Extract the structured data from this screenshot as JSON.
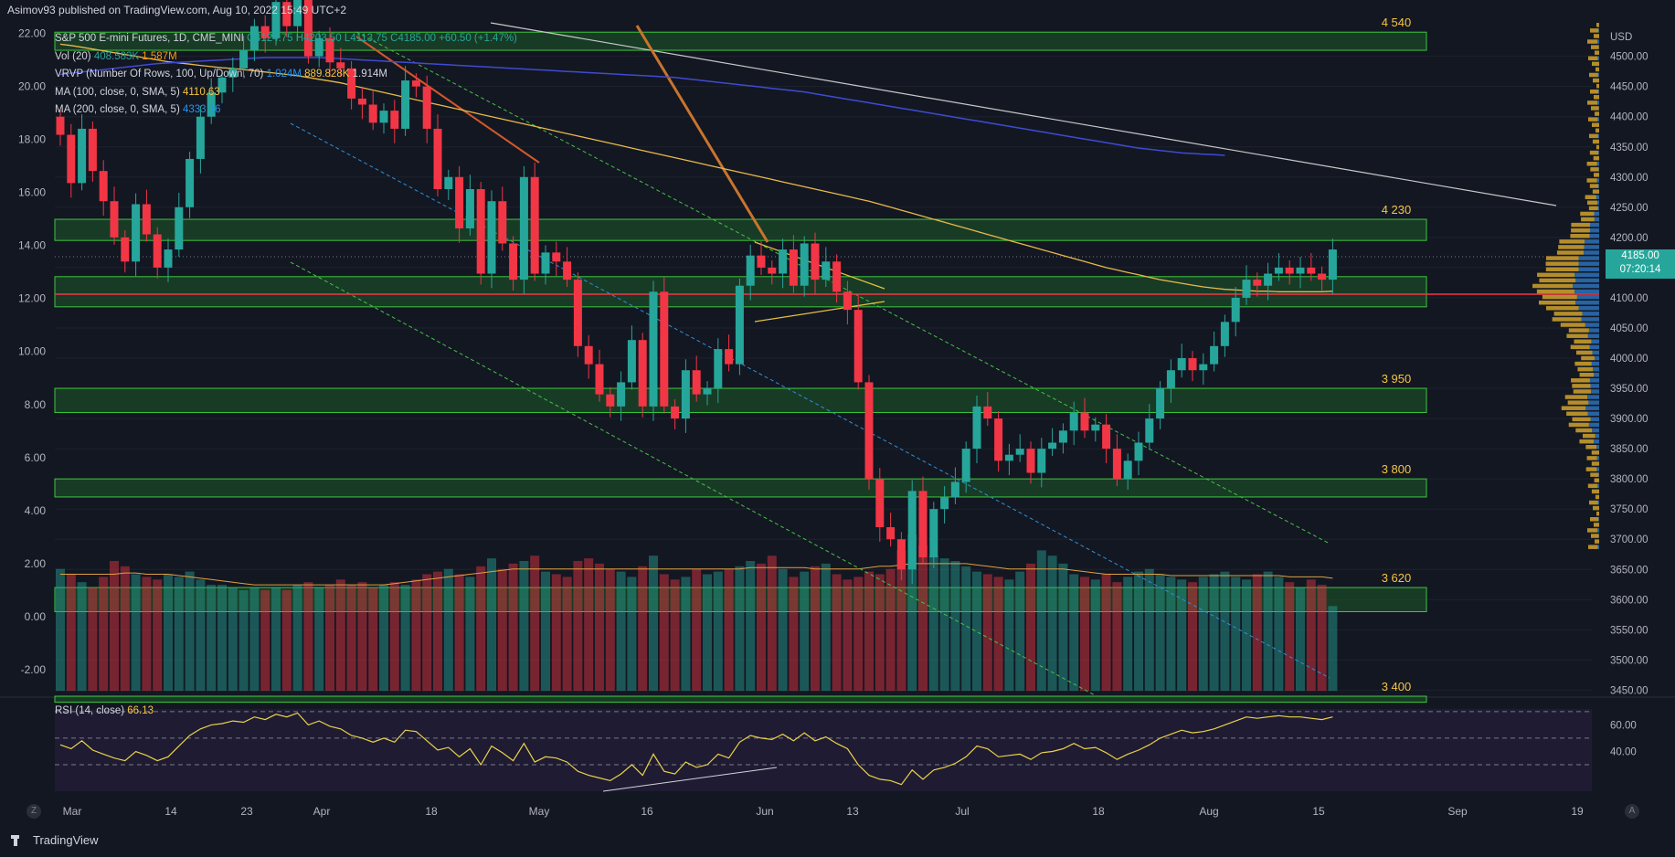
{
  "header": {
    "text": "Asimov93 published on TradingView.com, Aug 10, 2022 15:49 UTC+2"
  },
  "legend": {
    "title": "S&P 500 E-mini Futures, 1D, CME_MINI",
    "ohlc": "O4124.75 H4203.50 L4113.75 C4185.00 +60.50 (+1.47%)",
    "vol_label": "Vol (20)",
    "vol_a": "408.583K",
    "vol_b": "1.587M",
    "vrvp_label": "VRVP (Number Of Rows, 100, Up/Down, 70)",
    "vrvp_a": "1.024M",
    "vrvp_b": "889.828K",
    "vrvp_c": "1.914M",
    "ma100_label": "MA (100, close, 0, SMA, 5)",
    "ma100_val": "4110.63",
    "ma200_label": "MA (200, close, 0, SMA, 5)",
    "ma200_val": "4333.16"
  },
  "rsi_legend": {
    "label": "RSI (14, close)",
    "value": "66.13"
  },
  "price_tag": {
    "price": "4185.00",
    "countdown": "07:20:14"
  },
  "footer": {
    "brand": "TradingView",
    "z_label": "Z",
    "a_label": "A"
  },
  "colors": {
    "up": "#26a69a",
    "down": "#f23645",
    "zone": "#1e5a2a",
    "zone_border": "#3ec73e",
    "ma100": "#e9b949",
    "ma200": "#3f4bd1",
    "rsi": "#e9d34a",
    "level_text": "#f5c542"
  },
  "chart_data": [
    {
      "type": "candlestick",
      "title": "S&P 500 E-mini Futures, 1D, CME_MINI",
      "ylim": [
        3440,
        4560
      ],
      "right_axis_ticks": [
        "USD",
        "4500.00",
        "4450.00",
        "4400.00",
        "4350.00",
        "4300.00",
        "4250.00",
        "4200.00",
        "4150.00",
        "4100.00",
        "4050.00",
        "4000.00",
        "3950.00",
        "3900.00",
        "3850.00",
        "3800.00",
        "3750.00",
        "3700.00",
        "3650.00",
        "3600.00",
        "3550.00",
        "3500.00",
        "3450.00"
      ],
      "left_axis_ticks": [
        "22.00",
        "20.00",
        "18.00",
        "16.00",
        "14.00",
        "12.00",
        "10.00",
        "8.00",
        "6.00",
        "4.00",
        "2.00",
        "0.00",
        "-2.00"
      ],
      "x_ticks": [
        "Mar",
        "14",
        "23",
        "Apr",
        "18",
        "May",
        "16",
        "Jun",
        "13",
        "Jul",
        "18",
        "Aug",
        "15",
        "Sep",
        "19"
      ],
      "closes": [
        4370,
        4290,
        4380,
        4310,
        4260,
        4200,
        4160,
        4255,
        4205,
        4150,
        4180,
        4250,
        4330,
        4400,
        4440,
        4465,
        4480,
        4510,
        4550,
        4530,
        4590,
        4550,
        4600,
        4500,
        4530,
        4490,
        4480,
        4430,
        4420,
        4390,
        4410,
        4380,
        4460,
        4450,
        4380,
        4280,
        4300,
        4215,
        4280,
        4140,
        4260,
        4190,
        4130,
        4300,
        4140,
        4175,
        4160,
        4130,
        4020,
        3990,
        3940,
        3920,
        3960,
        4030,
        3920,
        4110,
        3920,
        3900,
        3980,
        3940,
        3950,
        4015,
        3990,
        4120,
        4170,
        4150,
        4140,
        4180,
        4120,
        4190,
        4130,
        4160,
        4110,
        4080,
        3960,
        3800,
        3720,
        3700,
        3650,
        3780,
        3670,
        3750,
        3770,
        3795,
        3850,
        3920,
        3900,
        3830,
        3840,
        3850,
        3810,
        3850,
        3860,
        3880,
        3910,
        3880,
        3890,
        3850,
        3800,
        3830,
        3860,
        3900,
        3950,
        3980,
        4000,
        3980,
        3990,
        4020,
        4060,
        4100,
        4130,
        4120,
        4140,
        4150,
        4140,
        4150,
        4140,
        4130,
        4180
      ],
      "ma100": [
        4520,
        4518,
        4515,
        4512,
        4509,
        4506,
        4503,
        4500,
        4497,
        4494,
        4491,
        4489,
        4487,
        4485,
        4483,
        4481,
        4480,
        4478,
        4476,
        4474,
        4472,
        4470,
        4468,
        4465,
        4462,
        4459,
        4456,
        4452,
        4448,
        4444,
        4440,
        4436,
        4432,
        4428,
        4424,
        4420,
        4416,
        4412,
        4408,
        4404,
        4400,
        4396,
        4392,
        4388,
        4384,
        4380,
        4376,
        4372,
        4368,
        4364,
        4360,
        4356,
        4352,
        4348,
        4344,
        4340,
        4336,
        4332,
        4328,
        4324,
        4320,
        4316,
        4312,
        4308,
        4304,
        4300,
        4296,
        4292,
        4288,
        4284,
        4280,
        4276,
        4272,
        4268,
        4264,
        4260,
        4255,
        4250,
        4245,
        4240,
        4235,
        4230,
        4225,
        4220,
        4215,
        4210,
        4205,
        4200,
        4195,
        4190,
        4185,
        4180,
        4175,
        4170,
        4165,
        4160,
        4155,
        4150,
        4146,
        4142,
        4138,
        4134,
        4130,
        4127,
        4124,
        4121,
        4118,
        4116,
        4114,
        4113,
        4112,
        4111,
        4111,
        4110,
        4110,
        4110,
        4110,
        4110,
        4111
      ],
      "ma200": [
        4470,
        4472,
        4474,
        4476,
        4478,
        4480,
        4482,
        4484,
        4486,
        4488,
        4489,
        4490,
        4491,
        4492,
        4493,
        4494,
        4495,
        4496,
        4497,
        4498,
        4498,
        4498,
        4498,
        4498,
        4498,
        4497,
        4496,
        4495,
        4494,
        4493,
        4492,
        4491,
        4490,
        4489,
        4488,
        4487,
        4486,
        4485,
        4484,
        4483,
        4482,
        4481,
        4480,
        4479,
        4478,
        4477,
        4476,
        4475,
        4474,
        4473,
        4472,
        4471,
        4470,
        4469,
        4468,
        4467,
        4466,
        4465,
        4463,
        4461,
        4459,
        4457,
        4455,
        4453,
        4451,
        4449,
        4447,
        4445,
        4443,
        4441,
        4438,
        4435,
        4432,
        4429,
        4426,
        4423,
        4420,
        4417,
        4414,
        4411,
        4408,
        4405,
        4402,
        4399,
        4396,
        4393,
        4390,
        4387,
        4384,
        4381,
        4378,
        4375,
        4372,
        4369,
        4366,
        4363,
        4360,
        4357,
        4354,
        4351,
        4348,
        4346,
        4344,
        4342,
        4340,
        4339,
        4338,
        4337,
        4336,
        4335,
        4335,
        4334,
        4334,
        4333,
        4333,
        4333,
        4333,
        4333,
        4333
      ],
      "zones": [
        {
          "label": "4 540",
          "low": 4510,
          "high": 4540
        },
        {
          "label": "4 230",
          "low": 4195,
          "high": 4230
        },
        {
          "label": "",
          "low": 4085,
          "high": 4135
        },
        {
          "label": "3 950",
          "low": 3910,
          "high": 3950
        },
        {
          "label": "3 800",
          "low": 3770,
          "high": 3800
        },
        {
          "label": "3 620",
          "low": 3580,
          "high": 3620
        },
        {
          "label": "3 400",
          "low": 3430,
          "high": 3440
        }
      ],
      "last_price": 4185.0
    },
    {
      "type": "bar",
      "title": "Vol (20)",
      "values": [
        1.8,
        1.6,
        1.3,
        1.1,
        1.5,
        2.1,
        1.9,
        1.6,
        1.5,
        1.4,
        1.6,
        1.5,
        1.7,
        1.4,
        1.2,
        1.2,
        1.1,
        1.0,
        1.1,
        1.0,
        1.1,
        1.0,
        1.2,
        1.3,
        1.1,
        1.2,
        1.4,
        1.2,
        1.3,
        1.1,
        1.2,
        1.3,
        1.2,
        1.4,
        1.6,
        1.7,
        1.8,
        1.6,
        1.5,
        1.9,
        2.2,
        1.8,
        2.0,
        2.1,
        2.3,
        1.7,
        1.6,
        1.5,
        2.1,
        2.2,
        2.0,
        1.8,
        1.7,
        1.5,
        1.9,
        2.3,
        1.6,
        1.4,
        1.5,
        1.8,
        1.6,
        1.7,
        1.8,
        1.9,
        2.1,
        2.0,
        2.3,
        1.8,
        1.5,
        1.7,
        1.9,
        2.0,
        1.6,
        1.4,
        1.5,
        1.7,
        1.6,
        1.8,
        2.5,
        3.1,
        2.7,
        2.3,
        2.2,
        2.1,
        1.9,
        1.7,
        1.6,
        1.5,
        1.4,
        1.7,
        2.0,
        2.5,
        2.3,
        2.0,
        1.6,
        1.5,
        1.4,
        1.6,
        1.3,
        1.5,
        1.7,
        1.8,
        1.6,
        1.5,
        1.4,
        1.3,
        1.5,
        1.6,
        1.7,
        1.5,
        1.4,
        1.6,
        1.7,
        1.5,
        1.3,
        1.1,
        1.4,
        1.2,
        0.4
      ],
      "ma": [
        1.6,
        1.6,
        1.6,
        1.6,
        1.6,
        1.6,
        1.65,
        1.65,
        1.6,
        1.6,
        1.6,
        1.55,
        1.5,
        1.45,
        1.4,
        1.35,
        1.3,
        1.25,
        1.2,
        1.2,
        1.2,
        1.2,
        1.2,
        1.2,
        1.2,
        1.2,
        1.2,
        1.2,
        1.2,
        1.2,
        1.2,
        1.25,
        1.3,
        1.35,
        1.4,
        1.45,
        1.5,
        1.55,
        1.6,
        1.65,
        1.7,
        1.75,
        1.8,
        1.8,
        1.8,
        1.8,
        1.8,
        1.8,
        1.8,
        1.8,
        1.8,
        1.8,
        1.8,
        1.8,
        1.8,
        1.8,
        1.8,
        1.8,
        1.8,
        1.8,
        1.8,
        1.8,
        1.8,
        1.8,
        1.85,
        1.85,
        1.85,
        1.85,
        1.85,
        1.85,
        1.8,
        1.8,
        1.8,
        1.8,
        1.8,
        1.85,
        1.9,
        1.9,
        1.95,
        2.0,
        2.0,
        2.0,
        2.0,
        2.0,
        2.0,
        1.95,
        1.9,
        1.85,
        1.8,
        1.8,
        1.8,
        1.8,
        1.8,
        1.8,
        1.75,
        1.7,
        1.65,
        1.6,
        1.6,
        1.6,
        1.6,
        1.6,
        1.6,
        1.55,
        1.55,
        1.55,
        1.55,
        1.55,
        1.55,
        1.55,
        1.55,
        1.55,
        1.55,
        1.55,
        1.5,
        1.5,
        1.5,
        1.5,
        1.45
      ],
      "ylim": [
        -3.0,
        22.5
      ]
    },
    {
      "type": "line",
      "title": "RSI (14, close)",
      "values": [
        45,
        42,
        48,
        41,
        38,
        35,
        33,
        40,
        37,
        33,
        36,
        44,
        52,
        57,
        60,
        61,
        63,
        62,
        66,
        64,
        68,
        66,
        69,
        60,
        63,
        59,
        57,
        52,
        50,
        47,
        50,
        47,
        56,
        55,
        48,
        41,
        43,
        36,
        42,
        30,
        44,
        39,
        33,
        46,
        32,
        36,
        35,
        32,
        25,
        22,
        20,
        18,
        23,
        30,
        22,
        38,
        25,
        23,
        32,
        28,
        30,
        38,
        35,
        47,
        52,
        50,
        49,
        53,
        48,
        54,
        48,
        51,
        46,
        42,
        30,
        22,
        19,
        18,
        15,
        26,
        19,
        26,
        28,
        31,
        36,
        44,
        42,
        36,
        37,
        38,
        34,
        39,
        40,
        42,
        46,
        42,
        43,
        39,
        34,
        38,
        41,
        45,
        50,
        53,
        56,
        54,
        55,
        57,
        60,
        63,
        66,
        65,
        66,
        67,
        66,
        66,
        65,
        64,
        66
      ],
      "levels": [
        70,
        50,
        30
      ],
      "y_ticks": [
        "60.00",
        "40.00"
      ],
      "ylim": [
        10,
        72
      ]
    }
  ]
}
